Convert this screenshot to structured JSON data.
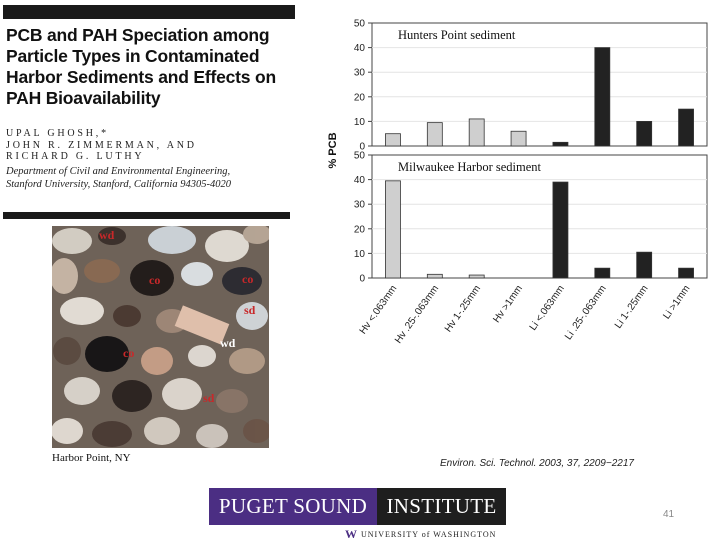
{
  "title_lines": [
    "PCB and PAH Speciation among",
    "Particle Types in Contaminated",
    "Harbor Sediments and Effects on",
    "PAH Bioavailability"
  ],
  "authors": [
    "UPAL GHOSH,*",
    "JOHN R. ZIMMERMAN, AND",
    "RICHARD G. LUTHY"
  ],
  "affiliation": [
    "Department of Civil and Environmental Engineering,",
    "Stanford University, Stanford, California 94305-4020"
  ],
  "photo": {
    "caption": "Harbor Point, NY",
    "labels": [
      "wd",
      "co",
      "sd",
      "co",
      "wd",
      "co",
      "sd"
    ]
  },
  "citation": "Environ. Sci. Technol. 2003, 37, 2209−2217",
  "logo": {
    "left_text": "PUGET SOUND",
    "right_text": "INSTITUTE",
    "left_color": "#4b2e83",
    "right_color": "#1e1e1e"
  },
  "university": {
    "mark": "W",
    "text": "UNIVERSITY of WASHINGTON"
  },
  "page_number": "41",
  "chart_data": {
    "type": "bar",
    "ylabel": "% PCB",
    "categories": [
      "Hv <.063mm",
      "Hv .25-.063mm",
      "Hv 1-.25mm",
      "Hv >1mm",
      "Li <.063mm",
      "Li .25-.063mm",
      "Li 1-.25mm",
      "Li >1mm"
    ],
    "category_groups": [
      "light",
      "light",
      "light",
      "light",
      "dark",
      "dark",
      "dark",
      "dark"
    ],
    "colors": {
      "light": "#cfcfcf",
      "dark": "#222222"
    },
    "panels": [
      {
        "name": "Hunters Point sediment",
        "ylim": [
          0,
          50
        ],
        "yticks": [
          0,
          10,
          20,
          30,
          40,
          50
        ],
        "values": [
          5,
          9.5,
          11,
          6,
          1.5,
          40,
          10,
          15
        ]
      },
      {
        "name": "Milwaukee Harbor sediment",
        "ylim": [
          0,
          50
        ],
        "yticks": [
          0,
          10,
          20,
          30,
          40,
          50
        ],
        "values": [
          39.5,
          1.5,
          1.2,
          0,
          39,
          4,
          10.5,
          4
        ]
      }
    ]
  }
}
